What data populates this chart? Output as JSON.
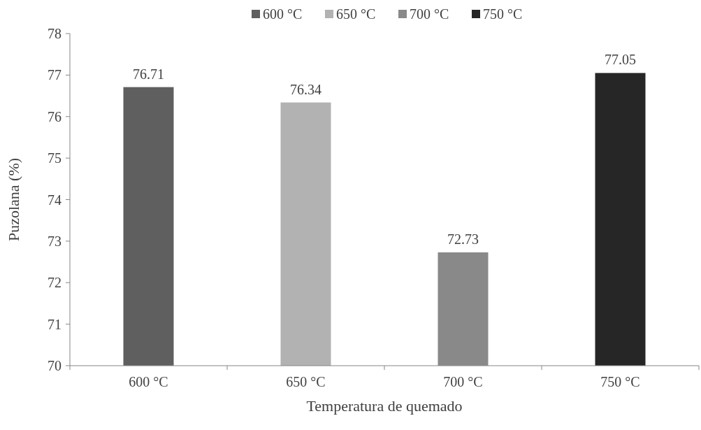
{
  "chart_data": {
    "type": "bar",
    "ylabel": "Puzolana (%)",
    "xlabel": "Temperatura de quemado",
    "categories": [
      "600 °C",
      "650 °C",
      "700 °C",
      "750 °C"
    ],
    "series": [
      {
        "name": "600 °C",
        "color": "#5f5f5f",
        "values": [
          76.71,
          null,
          null,
          null
        ]
      },
      {
        "name": "650 °C",
        "color": "#b2b2b2",
        "values": [
          null,
          76.34,
          null,
          null
        ]
      },
      {
        "name": "700 °C",
        "color": "#898989",
        "values": [
          null,
          null,
          72.73,
          null
        ]
      },
      {
        "name": "750 °C",
        "color": "#262626",
        "values": [
          null,
          null,
          null,
          77.05
        ]
      }
    ],
    "ylim": [
      70,
      78
    ],
    "yticks": [
      70,
      71,
      72,
      73,
      74,
      75,
      76,
      77,
      78
    ],
    "data_labels": true,
    "legend": "top",
    "grid": false
  }
}
